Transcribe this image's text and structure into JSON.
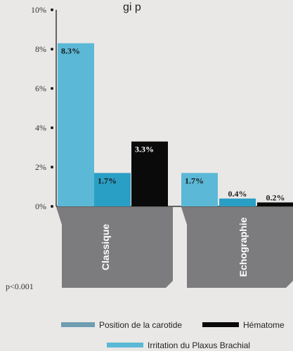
{
  "chart_data": {
    "type": "bar",
    "title_fragment": "gi p",
    "categories": [
      "Classique",
      "Echographie"
    ],
    "series": [
      {
        "name": "Irritation du Plaxus Brachial",
        "values": [
          8.3,
          1.7
        ],
        "labels": [
          "8.3%",
          "1.7%"
        ],
        "color": "#5bb8d6"
      },
      {
        "name": "Position de la carotide",
        "values": [
          1.7,
          0.4
        ],
        "labels": [
          "1.7%",
          "0.4%"
        ],
        "color": "#2a9fc6"
      },
      {
        "name": "Hématome",
        "values": [
          3.3,
          0.2
        ],
        "labels": [
          "3.3%",
          "0.2%"
        ],
        "color": "#0a0a0a"
      }
    ],
    "yticks": [
      "0%",
      "2%",
      "4%",
      "6%",
      "8%",
      "10%"
    ],
    "ylim": [
      0,
      10
    ],
    "pvalue": "p<0.001",
    "legend": [
      {
        "label": "Position de la carotide",
        "color": "#6f9db1"
      },
      {
        "label": "Hématome",
        "color": "#0a0a0a"
      },
      {
        "label": "Irritation du Plaxus Brachial",
        "color": "#5bb8d6"
      }
    ],
    "category_panel_color": "#7c7b7d"
  }
}
